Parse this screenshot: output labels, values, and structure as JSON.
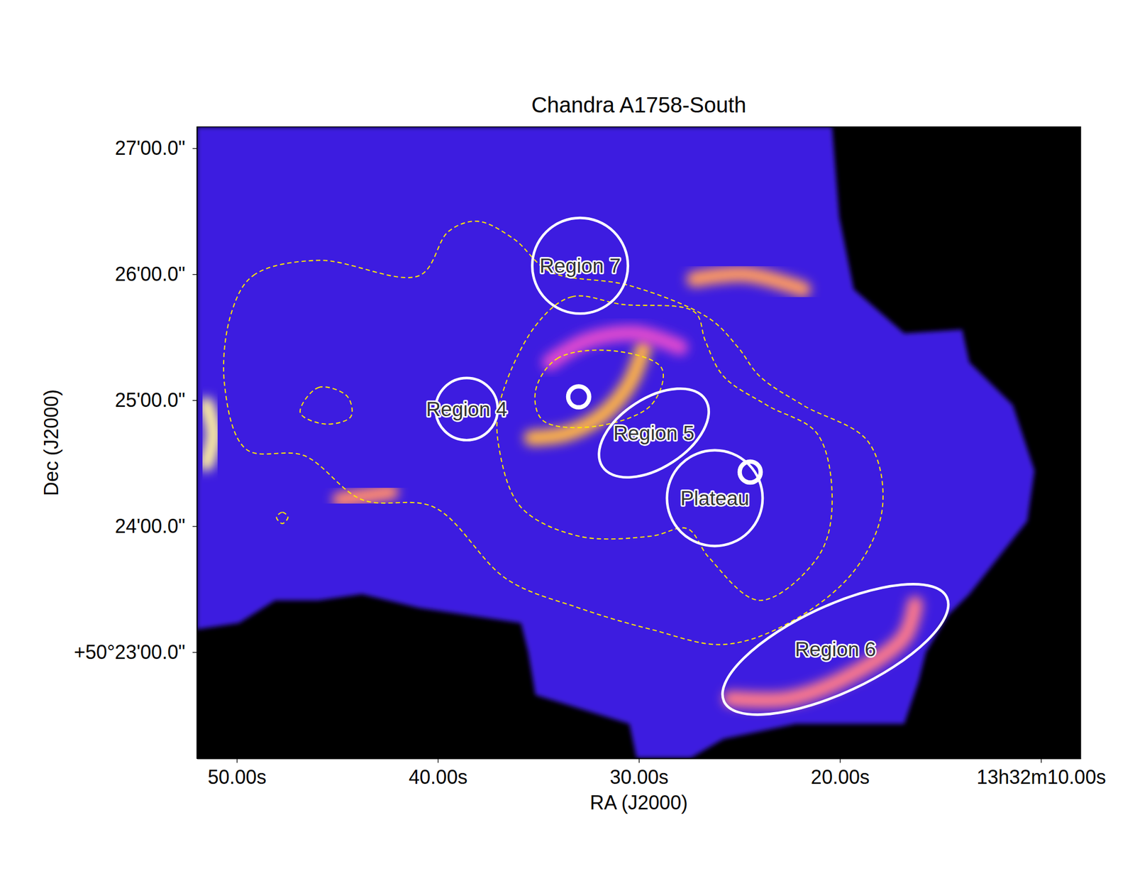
{
  "chart_data": {
    "type": "image",
    "title": "Chandra A1758-South",
    "x_label": "RA (J2000)",
    "y_label": "Dec (J2000)",
    "xlim": [
      51.98,
      8.02
    ],
    "ylim": [
      22.155,
      27.17
    ],
    "xticks": [
      {
        "value": 50,
        "label": "50.00s"
      },
      {
        "value": 40,
        "label": "40.00s"
      },
      {
        "value": 30,
        "label": "30.00s"
      },
      {
        "value": 20,
        "label": "20.00s"
      },
      {
        "value": 10,
        "label": "13h32m10.00s"
      }
    ],
    "yticks": [
      {
        "value": 23,
        "label": "+50°23'00.0\""
      },
      {
        "value": 24,
        "label": "24'00.0\""
      },
      {
        "value": 25,
        "label": "25'00.0\""
      },
      {
        "value": 26,
        "label": "26'00.0\""
      },
      {
        "value": 27,
        "label": "27'00.0\""
      }
    ],
    "footprint": {
      "color": "#3d1fe0",
      "points": [
        [
          51.98,
          27.17
        ],
        [
          20.39,
          27.17
        ],
        [
          20.03,
          26.45
        ],
        [
          19.31,
          25.88
        ],
        [
          16.8,
          25.53
        ],
        [
          13.92,
          25.56
        ],
        [
          13.56,
          25.3
        ],
        [
          11.4,
          24.96
        ],
        [
          10.32,
          24.44
        ],
        [
          10.68,
          24.04
        ],
        [
          13.56,
          23.46
        ],
        [
          14.64,
          23.29
        ],
        [
          15.72,
          23.0
        ],
        [
          16.08,
          22.77
        ],
        [
          16.8,
          22.43
        ],
        [
          22.19,
          22.43
        ],
        [
          25.79,
          22.31
        ],
        [
          27.41,
          22.16
        ],
        [
          30.11,
          22.16
        ],
        [
          30.47,
          22.43
        ],
        [
          35.14,
          22.66
        ],
        [
          35.5,
          23.0
        ],
        [
          35.86,
          23.23
        ],
        [
          38.38,
          23.29
        ],
        [
          40.9,
          23.35
        ],
        [
          43.77,
          23.46
        ],
        [
          45.94,
          23.41
        ],
        [
          48.09,
          23.41
        ],
        [
          49.89,
          23.23
        ],
        [
          51.98,
          23.18
        ]
      ]
    },
    "features": [
      {
        "color": "#ffb347",
        "points": [
          [
            35.32,
            24.7
          ],
          [
            33.7,
            24.73
          ],
          [
            31.91,
            24.87
          ],
          [
            30.47,
            25.13
          ],
          [
            29.75,
            25.42
          ]
        ]
      },
      {
        "color": "#e04ad0",
        "points": [
          [
            34.42,
            25.3
          ],
          [
            32.62,
            25.47
          ],
          [
            30.11,
            25.53
          ],
          [
            27.95,
            25.42
          ]
        ]
      },
      {
        "color": "#fff0a0",
        "points": [
          [
            51.51,
            24.96
          ],
          [
            51.15,
            24.73
          ],
          [
            51.51,
            24.5
          ]
        ]
      },
      {
        "color": "#ff7a8a",
        "points": [
          [
            25.43,
            22.63
          ],
          [
            22.55,
            22.63
          ],
          [
            19.67,
            22.8
          ],
          [
            16.8,
            23.12
          ],
          [
            16.26,
            23.38
          ]
        ]
      },
      {
        "color": "#ff9a60",
        "points": [
          [
            27.23,
            25.96
          ],
          [
            24.71,
            26.0
          ],
          [
            21.83,
            25.88
          ]
        ]
      },
      {
        "color": "#ff8a70",
        "points": [
          [
            44.85,
            24.21
          ],
          [
            42.34,
            24.27
          ]
        ]
      }
    ],
    "contours": {
      "color": "#ffe600",
      "line_style": "dashed",
      "paths": [
        [
          [
            50.25,
            25.7
          ],
          [
            49.17,
            25.99
          ],
          [
            45.94,
            26.11
          ],
          [
            40.9,
            25.99
          ],
          [
            39.46,
            26.34
          ],
          [
            38.02,
            26.42
          ],
          [
            36.22,
            26.28
          ],
          [
            34.42,
            26.02
          ],
          [
            30.47,
            25.91
          ],
          [
            26.51,
            25.65
          ],
          [
            25.07,
            25.42
          ],
          [
            23.99,
            25.19
          ],
          [
            21.83,
            24.96
          ],
          [
            18.59,
            24.67
          ],
          [
            17.88,
            24.15
          ],
          [
            19.31,
            23.64
          ],
          [
            22.55,
            23.23
          ],
          [
            25.79,
            23.06
          ],
          [
            29.39,
            23.18
          ],
          [
            32.98,
            23.35
          ],
          [
            36.58,
            23.58
          ],
          [
            40.18,
            24.15
          ],
          [
            43.77,
            24.21
          ],
          [
            46.65,
            24.56
          ],
          [
            49.53,
            24.61
          ],
          [
            50.61,
            25.13
          ]
        ],
        [
          [
            35.14,
            25.59
          ],
          [
            33.34,
            25.82
          ],
          [
            30.83,
            25.76
          ],
          [
            27.23,
            25.7
          ],
          [
            26.69,
            25.47
          ],
          [
            25.79,
            25.19
          ],
          [
            23.63,
            24.96
          ],
          [
            21.11,
            24.73
          ],
          [
            20.39,
            24.15
          ],
          [
            21.11,
            23.75
          ],
          [
            23.99,
            23.41
          ],
          [
            26.51,
            23.75
          ],
          [
            27.59,
            23.98
          ],
          [
            29.39,
            23.92
          ],
          [
            32.98,
            23.92
          ],
          [
            35.86,
            24.15
          ],
          [
            36.94,
            24.61
          ],
          [
            36.94,
            24.96
          ]
        ],
        [
          [
            35.14,
            25.07
          ],
          [
            34.06,
            25.33
          ],
          [
            31.19,
            25.39
          ],
          [
            28.85,
            25.25
          ],
          [
            29.39,
            24.96
          ],
          [
            32.26,
            24.79
          ],
          [
            34.78,
            24.84
          ]
        ],
        [
          [
            46.84,
            24.9
          ],
          [
            45.94,
            25.1
          ],
          [
            44.5,
            25.03
          ],
          [
            44.32,
            24.87
          ],
          [
            45.58,
            24.81
          ]
        ],
        [
          [
            48.02,
            24.07
          ],
          [
            47.73,
            24.11
          ],
          [
            47.45,
            24.07
          ],
          [
            47.73,
            24.02
          ]
        ]
      ]
    },
    "regions": [
      {
        "label": "Region 7",
        "shape": "circle",
        "ra": 32.92,
        "dec": 26.067,
        "radius": 22.8
      },
      {
        "label": "Region 4",
        "shape": "circle",
        "ra": 38.56,
        "dec": 24.929,
        "radius": 14.8
      },
      {
        "shape": "circle",
        "ra": 32.99,
        "dec": 25.026,
        "radius": 5
      },
      {
        "label": "Region 5",
        "shape": "ellipse",
        "ra": 29.25,
        "dec": 24.739,
        "a": 29.3,
        "b": 16.5,
        "pa": 33
      },
      {
        "label": "Plateau",
        "shape": "circle",
        "ra": 26.22,
        "dec": 24.222,
        "radius": 22.8
      },
      {
        "shape": "circle",
        "ra": 24.46,
        "dec": 24.429,
        "radius": 5
      },
      {
        "label": "Region 6",
        "shape": "ellipse",
        "ra": 20.22,
        "dec": 23.021,
        "a": 58.6,
        "b": 20.7,
        "pa": 25
      }
    ]
  }
}
